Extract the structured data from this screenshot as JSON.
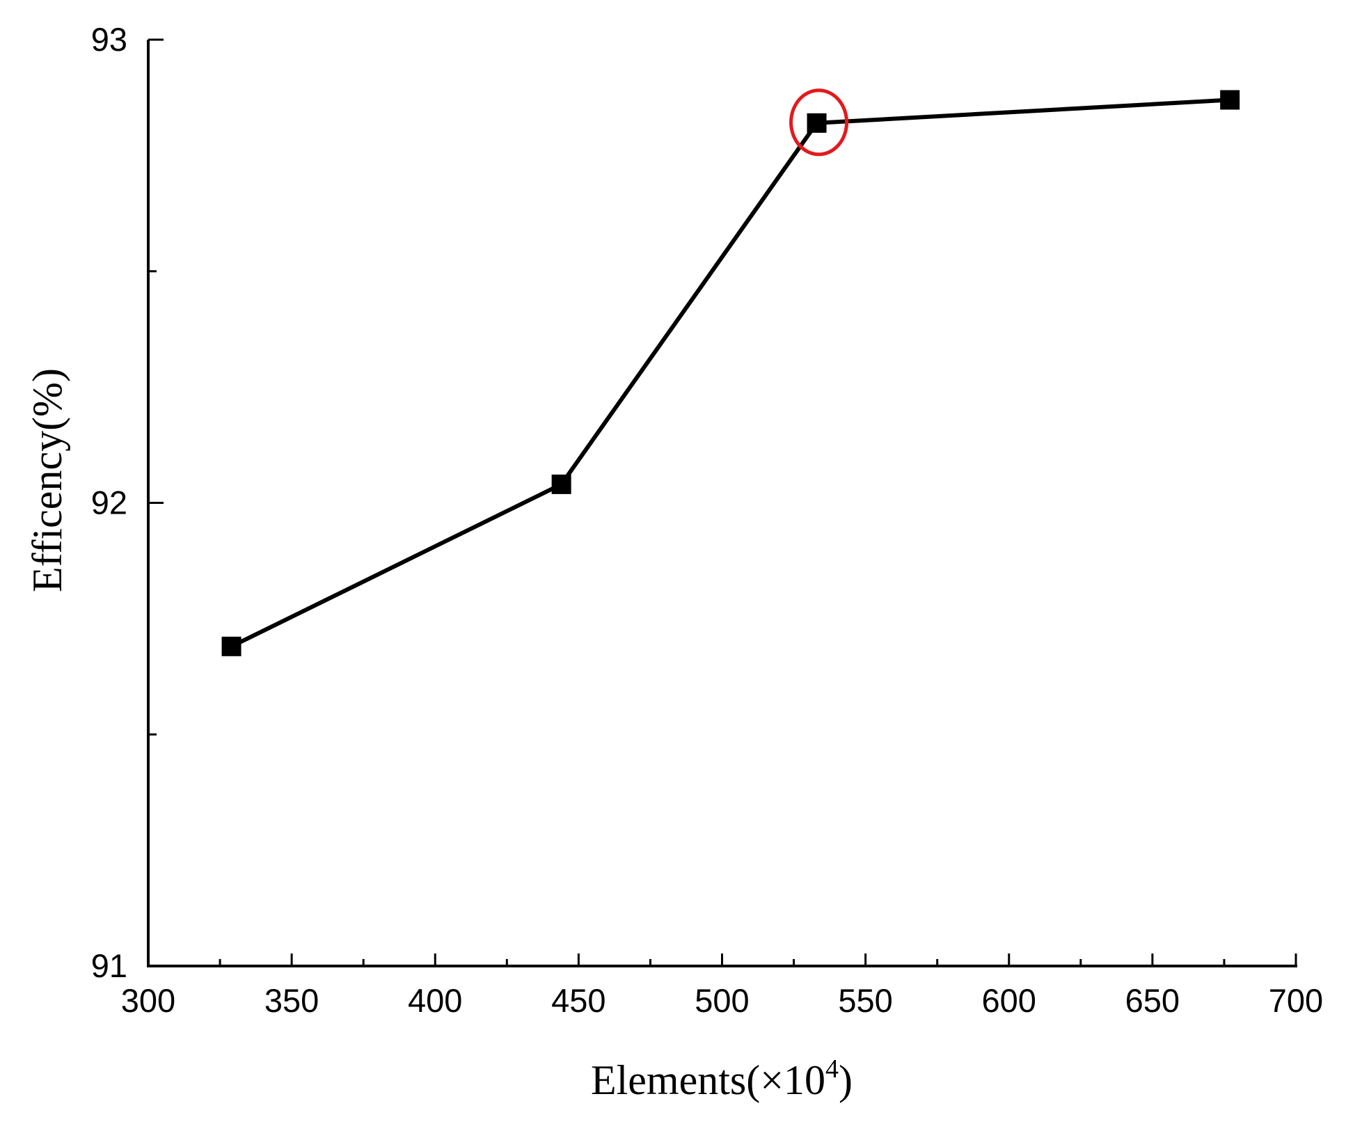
{
  "chart_data": {
    "type": "line",
    "title": "",
    "xlabel": "Elements(×10",
    "xlabel_superscript": "4",
    "xlabel_suffix": ")",
    "ylabel": "Efficency(%)",
    "xlim": [
      300,
      700
    ],
    "ylim": [
      91,
      93
    ],
    "x_ticks": [
      300,
      350,
      400,
      450,
      500,
      550,
      600,
      650,
      700
    ],
    "x_tick_labels": [
      "300",
      "350",
      "400",
      "450",
      "500",
      "550",
      "600",
      "650",
      "700"
    ],
    "y_ticks": [
      91,
      92,
      93
    ],
    "y_tick_labels": [
      "91",
      "92",
      "93"
    ],
    "grid": false,
    "series": [
      {
        "x": [
          329,
          444,
          533,
          677
        ],
        "y": [
          91.69,
          92.04,
          92.82,
          92.87
        ],
        "marker": "square",
        "color": "#000000"
      }
    ],
    "annotations": [
      {
        "type": "circle",
        "x": 533,
        "y": 92.82,
        "color": "#e31a1c"
      }
    ]
  }
}
